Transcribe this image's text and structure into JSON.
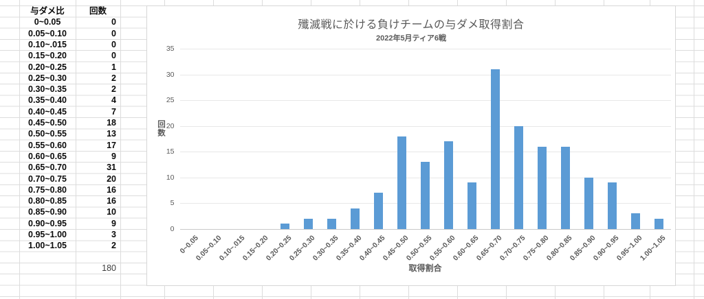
{
  "table": {
    "col_headers": [
      "与ダメ比",
      "回数"
    ],
    "rows": [
      [
        "0~0.05",
        "0"
      ],
      [
        "0.05~0.10",
        "0"
      ],
      [
        "0.10~.015",
        "0"
      ],
      [
        "0.15~0.20",
        "0"
      ],
      [
        "0.20~0.25",
        "1"
      ],
      [
        "0.25~0.30",
        "2"
      ],
      [
        "0.30~0.35",
        "2"
      ],
      [
        "0.35~0.40",
        "4"
      ],
      [
        "0.40~0.45",
        "7"
      ],
      [
        "0.45~0.50",
        "18"
      ],
      [
        "0.50~0.55",
        "13"
      ],
      [
        "0.55~0.60",
        "17"
      ],
      [
        "0.60~0.65",
        "9"
      ],
      [
        "0.65~0.70",
        "31"
      ],
      [
        "0.70~0.75",
        "20"
      ],
      [
        "0.75~0.80",
        "16"
      ],
      [
        "0.80~0.85",
        "16"
      ],
      [
        "0.85~0.90",
        "10"
      ],
      [
        "0.90~0.95",
        "9"
      ],
      [
        "0.95~1.00",
        "3"
      ],
      [
        "1.00~1.05",
        "2"
      ]
    ],
    "total": "180"
  },
  "chart_data": {
    "type": "bar",
    "title": "殲滅戦に於ける負けチームの与ダメ取得割合",
    "subtitle": "2022年5月ティア6戦",
    "xlabel": "取得割合",
    "ylabel": "回数",
    "categories": [
      "0~0.05",
      "0.05~0.10",
      "0.10~.015",
      "0.15~0.20",
      "0.20~0.25",
      "0.25~0.30",
      "0.30~0.35",
      "0.35~0.40",
      "0.40~0.45",
      "0.45~0.50",
      "0.50~0.55",
      "0.55~0.60",
      "0.60~0.65",
      "0.65~0.70",
      "0.70~0.75",
      "0.75~0.80",
      "0.80~0.85",
      "0.85~0.90",
      "0.90~0.95",
      "0.95~1.00",
      "1.00~1.05"
    ],
    "values": [
      0,
      0,
      0,
      0,
      1,
      2,
      2,
      4,
      7,
      18,
      13,
      17,
      9,
      31,
      20,
      16,
      16,
      10,
      9,
      3,
      2
    ],
    "ylim": [
      0,
      35
    ],
    "ytick_step": 5,
    "grid": true,
    "legend": "none",
    "colors": {
      "bar": "#5B9BD5",
      "gridline": "#E7E7E7",
      "axis_line": "#C9C9C9",
      "text": "#595959"
    }
  }
}
